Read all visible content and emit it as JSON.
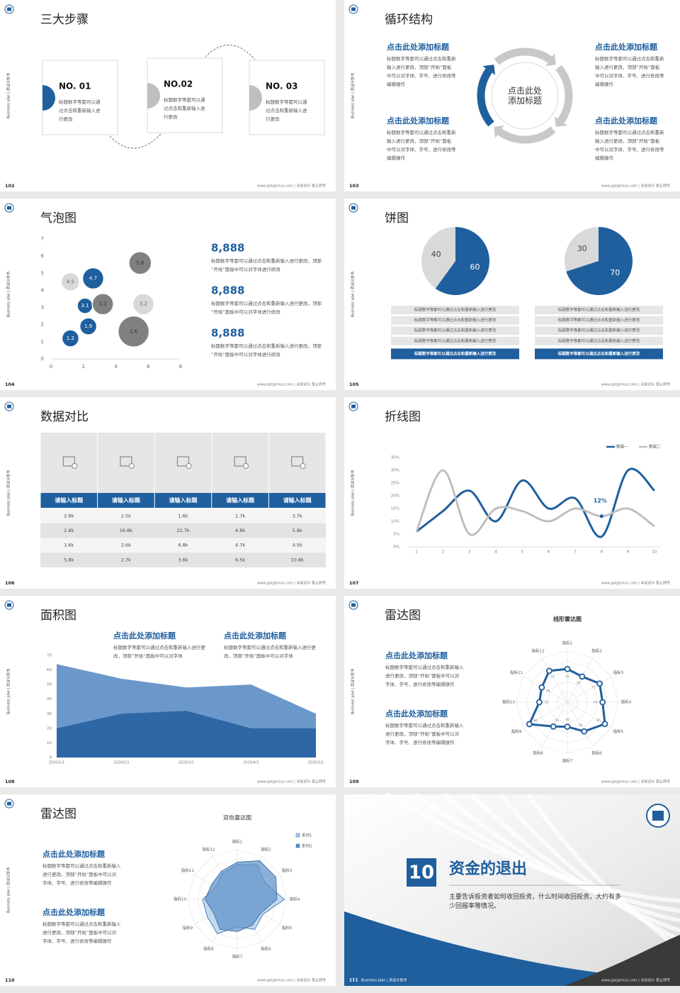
{
  "common": {
    "side_label": "Business plan | 商业计划书",
    "footer": "www.pptgenius.com | 寻创设计 禁止转传"
  },
  "slides": [
    {
      "page": 102,
      "title": "三大步骤",
      "steps": [
        {
          "label": "NO. 01",
          "text": "标题数字等都可以通过点击和重新输入进行更改"
        },
        {
          "label": "NO.02",
          "text": "标题数字等都可以通过点击和重新输入进行更改"
        },
        {
          "label": "NO. 03",
          "text": "标题数字等都可以通过点击和重新输入进行更改"
        }
      ]
    },
    {
      "page": 103,
      "title": "循环结构",
      "center": "点击此处添加标题",
      "blocks": [
        {
          "heading": "点击此处添加标题",
          "text": "标题数字等都可以通过点击和重新输入进行更改，顶部“开始”面板中可以对字体、字号、进行修改等编辑操作"
        },
        {
          "heading": "点击此处添加标题",
          "text": "标题数字等都可以通过点击和重新输入进行更改，顶部“开始”面板中可以对字体、字号、进行修改等编辑操作"
        },
        {
          "heading": "点击此处添加标题",
          "text": "标题数字等都可以通过点击和重新输入进行更改，顶部“开始”面板中可以对字体、字号、进行修改等编辑操作"
        },
        {
          "heading": "点击此处添加标题",
          "text": "标题数字等都可以通过点击和重新输入进行更改，顶部“开始”面板中可以对字体、字号、进行修改等编辑操作"
        }
      ]
    },
    {
      "page": 104,
      "title": "气泡图",
      "chart_data": {
        "type": "bubble",
        "xlim": [
          0,
          8
        ],
        "ylim": [
          0,
          7
        ],
        "xticks": [
          0,
          2,
          4,
          6,
          8
        ],
        "yticks": [
          0,
          1,
          2,
          3,
          4,
          5,
          6,
          7
        ],
        "series": [
          {
            "color": "#1f5f9e",
            "label_color": "#ffffff",
            "x": [
              1.2,
              2.3,
              2.1,
              2.6
            ],
            "values": [
              1.2,
              1.9,
              3.1,
              4.7
            ],
            "sizes": [
              12,
              12,
              11,
              15
            ]
          },
          {
            "color": "#d9d9d9",
            "label_color": "#666666",
            "x": [
              1.2,
              5.7
            ],
            "values": [
              4.5,
              3.2
            ],
            "sizes": [
              13,
              15
            ]
          },
          {
            "color": "#808080",
            "label_color": "#333333",
            "x": [
              3.2,
              5.5,
              5.1
            ],
            "values": [
              3.2,
              5.6,
              1.6
            ],
            "sizes": [
              15,
              16,
              22
            ]
          }
        ]
      },
      "stats": [
        {
          "value": "8,888",
          "text": "标题数字等都可以通过点击和重新输入进行更改，顶部“开始”面板中可以对字体进行修改"
        },
        {
          "value": "8,888",
          "text": "标题数字等都可以通过点击和重新输入进行更改，顶部“开始”面板中可以对字体进行修改"
        },
        {
          "value": "8,888",
          "text": "标题数字等都可以通过点击和重新输入进行更改，顶部“开始”面板中可以对字体进行修改"
        }
      ]
    },
    {
      "page": 105,
      "title": "饼图",
      "chart_data": [
        {
          "type": "pie",
          "values": [
            40,
            60
          ],
          "colors": [
            "#d9d9d9",
            "#1f5f9e"
          ]
        },
        {
          "type": "pie",
          "values": [
            30,
            70
          ],
          "colors": [
            "#d9d9d9",
            "#1f5f9e"
          ]
        }
      ],
      "notes": [
        [
          "标题数字等都可以通过点击和重新输入进行更改",
          "标题数字等都可以通过点击和重新输入进行更改",
          "标题数字等都可以通过点击和重新输入进行更改",
          "标题数字等都可以通过点击和重新输入进行更改",
          "标题数字等都可以通过点击和重新输入进行更改"
        ],
        [
          "标题数字等都可以通过点击和重新输入进行更改",
          "标题数字等都可以通过点击和重新输入进行更改",
          "标题数字等都可以通过点击和重新输入进行更改",
          "标题数字等都可以通过点击和重新输入进行更改",
          "标题数字等都可以通过点击和重新输入进行更改"
        ]
      ]
    },
    {
      "page": 106,
      "title": "数据对比",
      "table": {
        "headers": [
          "请输入标题",
          "请输入标题",
          "请输入标题",
          "请输入标题",
          "请输入标题"
        ],
        "rows": [
          [
            "2.8k",
            "2.5k",
            "1.6k",
            "1.7k",
            "3.7k"
          ],
          [
            "2.8k",
            "16.8k",
            "22.7k",
            "4.8k",
            "5.8k"
          ],
          [
            "1.6k",
            "2.6k",
            "6.8k",
            "4.7k",
            "4.5k"
          ],
          [
            "5.8k",
            "2.7k",
            "3.6k",
            "6.5k",
            "10.8k"
          ]
        ]
      }
    },
    {
      "page": 107,
      "title": "折线图",
      "chart_data": {
        "type": "line",
        "x": [
          1,
          2,
          3,
          4,
          5,
          6,
          7,
          8,
          9,
          10
        ],
        "xlim": [
          1,
          10
        ],
        "xticks": [
          1,
          2,
          3,
          4,
          5,
          6,
          7,
          8,
          9,
          10
        ],
        "ylim": [
          0,
          35
        ],
        "yticks": [
          {
            "value": 0,
            "label": "0%"
          },
          {
            "value": 5,
            "label": "5%"
          },
          {
            "value": 10,
            "label": "10%"
          },
          {
            "value": 15,
            "label": "15%"
          },
          {
            "value": 20,
            "label": "20%"
          },
          {
            "value": 25,
            "label": "25%"
          },
          {
            "value": 30,
            "label": "30%"
          },
          {
            "value": 35,
            "label": "35%"
          }
        ],
        "legend": "top-right",
        "series": [
          {
            "name": "数据一",
            "color": "#1f5f9e",
            "values": [
              6,
              14,
              22,
              10,
              26,
              15,
              19,
              4,
              30,
              22
            ]
          },
          {
            "name": "数据二",
            "color": "#bfbfbf",
            "values": [
              6,
              30,
              5,
              15,
              14,
              10,
              15,
              12,
              15,
              8
            ],
            "value_labels": [
              null,
              null,
              null,
              null,
              null,
              null,
              null,
              "12%",
              null,
              null
            ]
          }
        ]
      }
    },
    {
      "page": 108,
      "title": "面积图",
      "blocks": [
        {
          "heading": "点击此处添加标题",
          "text": "标题数字等都可以通过点击和重新输入进行更改，顶部“开始”面板中可以对字体"
        },
        {
          "heading": "点击此处添加标题",
          "text": "标题数字等都可以通过点击和重新输入进行更改，顶部“开始”面板中可以对字体"
        }
      ],
      "chart_data": {
        "type": "area",
        "categories": [
          "2020/1/1",
          "2020/2/1",
          "2020/3/1",
          "2020/4/1",
          "2020/5/1"
        ],
        "ylim": [
          0,
          70
        ],
        "yticks": [
          0,
          10,
          20,
          30,
          40,
          50,
          60,
          70
        ],
        "series": [
          {
            "color": "#6b98cb",
            "values": [
              64,
              54,
              48,
              50,
              30
            ]
          },
          {
            "color": "#2e67a6",
            "values": [
              20,
              30,
              32,
              20,
              20
            ]
          }
        ]
      }
    },
    {
      "page": 109,
      "title": "雷达图",
      "blocks": [
        {
          "heading": "点击此处添加标题",
          "text": "标题数字等都可以通过点击和重新输入进行更改，顶部“开始”面板中可以对字体、字号、进行修改等编辑操作"
        },
        {
          "heading": "点击此处添加标题",
          "text": "标题数字等都可以通过点击和重新输入进行更改，顶部“开始”面板中可以对字体、字号、进行修改等编辑操作"
        }
      ],
      "chart_data": {
        "type": "radar",
        "title": "线形雷达图",
        "markers": true,
        "categories": [
          "指标1",
          "指标2",
          "指标3",
          "指标4",
          "指标5",
          "指标6",
          "指标7",
          "指标8",
          "指标9",
          "指标10",
          "指标11",
          "指标12"
        ],
        "ylim": [
          0,
          100
        ],
        "series": [
          {
            "color": "#1f5f9e",
            "values": [
              65,
              58,
              73,
              69,
              85,
              66,
              48,
              55,
              86,
              55,
              58,
              71
            ]
          }
        ]
      }
    },
    {
      "page": 110,
      "title": "雷达图",
      "blocks": [
        {
          "heading": "点击此处添加标题",
          "text": "标题数字等都可以通过点击和重新输入进行更改，顶部“开始”面板中可以对字体、字号、进行修改等编辑操作"
        },
        {
          "heading": "点击此处添加标题",
          "text": "标题数字等都可以通过点击和重新输入进行更改，顶部“开始”面板中可以对字体、字号、进行修改等编辑操作"
        }
      ],
      "chart_data": {
        "type": "radar",
        "title": "双色雷达图",
        "markers": false,
        "legend": "top-right",
        "categories": [
          "指标1",
          "指标2",
          "指标3",
          "指标4",
          "指标5",
          "指标6",
          "指标7",
          "指标8",
          "指标9",
          "指标10",
          "指标11",
          "指标12"
        ],
        "ylim": [
          0,
          100
        ],
        "series": [
          {
            "name": "系列1",
            "color": "#a9cbe8",
            "values": [
              70,
              80,
              65,
              95,
              60,
              70,
              55,
              80,
              70,
              70,
              50,
              60
            ]
          },
          {
            "name": "系列2",
            "color": "#5b8fc7",
            "values": [
              75,
              90,
              90,
              80,
              55,
              60,
              65,
              70,
              55,
              65,
              60,
              65
            ]
          }
        ]
      }
    },
    {
      "page": 111,
      "number": 10,
      "title": "资金的退出",
      "description": "主要告诉投资者如何收回投资，什么时间收回投资，大约有多少回报率等情况。"
    }
  ]
}
